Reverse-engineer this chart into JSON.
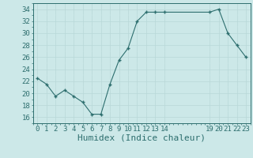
{
  "x": [
    0,
    1,
    2,
    3,
    4,
    5,
    6,
    7,
    8,
    9,
    10,
    11,
    12,
    13,
    14,
    19,
    20,
    21,
    22,
    23
  ],
  "y": [
    22.5,
    21.5,
    19.5,
    20.5,
    19.5,
    18.5,
    16.5,
    16.5,
    21.5,
    25.5,
    27.5,
    32,
    33.5,
    33.5,
    33.5,
    33.5,
    34,
    30,
    28,
    26
  ],
  "line_color": "#2d6e6e",
  "marker_color": "#2d6e6e",
  "bg_color": "#cce8e8",
  "grid_major_color": "#b8d8d8",
  "grid_minor_color": "#d0e8e8",
  "xlabel": "Humidex (Indice chaleur)",
  "xlabel_fontsize": 8,
  "tick_fontsize": 6.5,
  "ylim": [
    15,
    35
  ],
  "yticks": [
    16,
    18,
    20,
    22,
    24,
    26,
    28,
    30,
    32,
    34
  ],
  "xlim": [
    -0.5,
    23.5
  ],
  "xtick_positions": [
    0,
    1,
    2,
    3,
    4,
    5,
    6,
    7,
    8,
    9,
    10,
    11,
    12,
    13,
    14,
    19,
    20,
    21,
    22,
    23
  ],
  "xtick_labels": [
    "0",
    "1",
    "2",
    "3",
    "4",
    "5",
    "6",
    "7",
    "8",
    "9",
    "10",
    "11",
    "12",
    "13",
    "14",
    "19",
    "20",
    "21",
    "22",
    "23"
  ]
}
